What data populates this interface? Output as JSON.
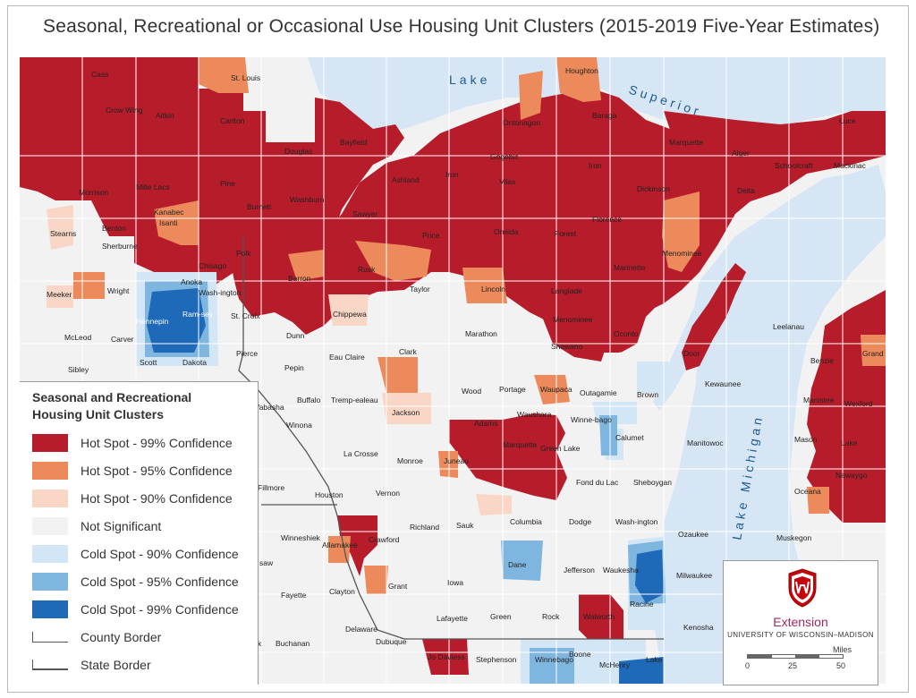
{
  "title": "Seasonal, Recreational or Occasional Use Housing Unit Clusters (2015-2019 Five-Year Estimates)",
  "colors": {
    "hot99": "#b71c2b",
    "hot95": "#ec8a5b",
    "hot90": "#fad6c6",
    "notsig": "#f2f2f2",
    "cold90": "#d3e6f6",
    "cold95": "#7fb6e0",
    "cold99": "#1f6ab8",
    "water": "#d6e6f5",
    "border": "#ffffff"
  },
  "lakes": {
    "superior_word1": "Lake",
    "superior_word2": "Superior",
    "michigan": "Lake Michigan"
  },
  "legend": {
    "title_line1": "Seasonal and Recreational",
    "title_line2": "Housing Unit Clusters",
    "items": [
      {
        "label": "Hot Spot - 99% Confidence",
        "color": "#b71c2b"
      },
      {
        "label": "Hot Spot - 95% Confidence",
        "color": "#ec8a5b"
      },
      {
        "label": "Hot Spot - 90% Confidence",
        "color": "#fad6c6"
      },
      {
        "label": "Not Significant",
        "color": "#f2f2f2"
      },
      {
        "label": "Cold Spot - 90% Confidence",
        "color": "#d3e6f6"
      },
      {
        "label": "Cold Spot - 95% Confidence",
        "color": "#7fb6e0"
      },
      {
        "label": "Cold Spot - 99% Confidence",
        "color": "#1f6ab8"
      },
      {
        "label": "County Border",
        "color": ""
      },
      {
        "label": "State Border",
        "color": ""
      }
    ]
  },
  "branding": {
    "extension": "Extension",
    "university": "UNIVERSITY OF WISCONSIN–MADISON",
    "scale_unit": "Miles",
    "scale_ticks": [
      "0",
      "25",
      "50"
    ]
  },
  "counties": {
    "cass": "Cass",
    "st_louis": "St. Louis",
    "houghton": "Houghton",
    "crow_wing": "Crow Wing",
    "aitkin": "Aitkin",
    "carlton": "Carlton",
    "ontonagon": "Ontonagon",
    "baraga": "Baraga",
    "luce": "Luce",
    "marquette_mi": "Marquette",
    "bayfield": "Bayfield",
    "douglas": "Douglas",
    "gogebic": "Gogebic",
    "alger": "Alger",
    "schoolcraft": "Schoolcraft",
    "mackinac": "Mackinac",
    "iron_mi": "Iron",
    "morrison": "Morrison",
    "mille_lacs": "Mille Lacs",
    "pine": "Pine",
    "ashland": "Ashland",
    "iron_wi": "Iron",
    "vilas": "Vilas",
    "dickinson": "Dickinson",
    "delta": "Delta",
    "kanabec": "Kanabec",
    "burnett": "Burnett",
    "washburn": "Washburn",
    "sawyer": "Sawyer",
    "florence": "Florence",
    "stearns": "Stearns",
    "benton": "Benton",
    "isanti": "Isanti",
    "price": "Price",
    "oneida": "Oneida",
    "forest": "Forest",
    "sherburne": "Sherburne",
    "chisago": "Chisago",
    "polk": "Polk",
    "rusk": "Rusk",
    "marinette": "Marinette",
    "menominee_mi": "Menominee",
    "barron": "Barron",
    "anoka": "Anoka",
    "wright": "Wright",
    "meeker": "Meeker",
    "washington_mn": "Wash-ington",
    "taylor": "Taylor",
    "lincoln": "Lincoln",
    "langlade": "Langlade",
    "hennepin": "Hennepin",
    "ramsey": "Ram-sey",
    "st_croix": "St. Croix",
    "chippewa": "Chippewa",
    "menominee_wi": "Menominee",
    "oconto": "Oconto",
    "leelanau": "Leelanau",
    "mcleod": "McLeod",
    "carver": "Carver",
    "dunn": "Dunn",
    "marathon": "Marathon",
    "shawano": "Shawano",
    "grand_traverse": "Grand Traverse",
    "scott": "Scott",
    "dakota": "Dakota",
    "sibley": "Sibley",
    "pierce": "Pierce",
    "pepin": "Pepin",
    "eau_claire": "Eau Claire",
    "clark": "Clark",
    "door": "Door",
    "benzie": "Benzie",
    "kewaunee": "Kewaunee",
    "buffalo": "Buffalo",
    "trempealeau": "Tremp-ealeau",
    "wood": "Wood",
    "portage": "Portage",
    "waupaca": "Waupaca",
    "outagamie": "Outagamie",
    "brown": "Brown",
    "manistee": "Manistee",
    "wexford": "Wexford",
    "wabasha": "Wabasha",
    "jackson": "Jackson",
    "adams": "Adams",
    "waushara": "Waushara",
    "winnebago_wi": "Winne-bago",
    "calumet": "Calumet",
    "winona": "Winona",
    "monroe": "Monroe",
    "juneau": "Juneau",
    "marquette_wi": "Marquette",
    "green_lake": "Green Lake",
    "manitowoc": "Manitowoc",
    "mason": "Mason",
    "lake_mi": "Lake",
    "la_crosse": "La Crosse",
    "fond_du_lac": "Fond du Lac",
    "sheboygan": "Sheboygan",
    "newaygo": "Newaygo",
    "fillmore": "Fillmore",
    "houston": "Houston",
    "vernon": "Vernon",
    "oceana": "Oceana",
    "richland": "Richland",
    "sauk": "Sauk",
    "columbia": "Columbia",
    "dodge": "Dodge",
    "washington_wi": "Wash-ington",
    "winneshiek": "Winneshiek",
    "allamakee": "Allamakee",
    "crawford": "Crawford",
    "ozaukee": "Ozaukee",
    "muskegon": "Muskegon",
    "dane": "Dane",
    "jefferson": "Jefferson",
    "waukesha": "Waukesha",
    "milwaukee": "Milwaukee",
    "chickasaw": "saw",
    "fayette": "Fayette",
    "clayton": "Clayton",
    "grant": "Grant",
    "iowa": "Iowa",
    "lafayette": "Lafayette",
    "green": "Green",
    "rock": "Rock",
    "walworth": "Walworth",
    "racine": "Racine",
    "kenosha": "Kenosha",
    "buchanan": "Buchanan",
    "delaware": "Delaware",
    "dubuque": "Dubuque",
    "jo_daviess": "Jo Daviess",
    "stephenson": "Stephenson",
    "winnebago_il": "Winnebago",
    "boone": "Boone",
    "mchenry": "McHenry",
    "lake_il": "Lake",
    "black_hawk": "k"
  }
}
